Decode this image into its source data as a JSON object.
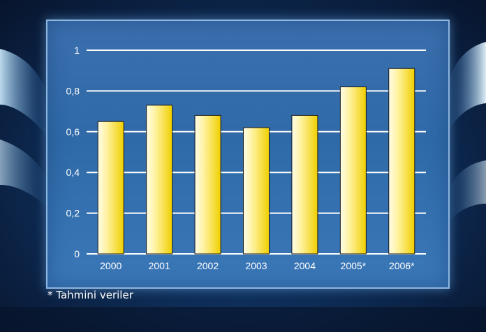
{
  "footnote": "* Tahmini veriler",
  "colors": {
    "bar_light": "#fffbe0",
    "bar_dark": "#f0d000",
    "grid": "#ffffff"
  },
  "chart_data": {
    "type": "bar",
    "title": "",
    "xlabel": "",
    "ylabel": "",
    "categories": [
      "2000",
      "2001",
      "2002",
      "2003",
      "2004",
      "2005*",
      "2006*"
    ],
    "values": [
      0.65,
      0.73,
      0.68,
      0.62,
      0.68,
      0.82,
      0.91
    ],
    "ylim": [
      0,
      1
    ],
    "yticks": [
      {
        "value": 0,
        "label": "0"
      },
      {
        "value": 0.2,
        "label": "0,2"
      },
      {
        "value": 0.4,
        "label": "0,4"
      },
      {
        "value": 0.6,
        "label": "0,6"
      },
      {
        "value": 0.8,
        "label": "0,8"
      },
      {
        "value": 1,
        "label": "1"
      }
    ],
    "grid": true,
    "legend": "none"
  }
}
